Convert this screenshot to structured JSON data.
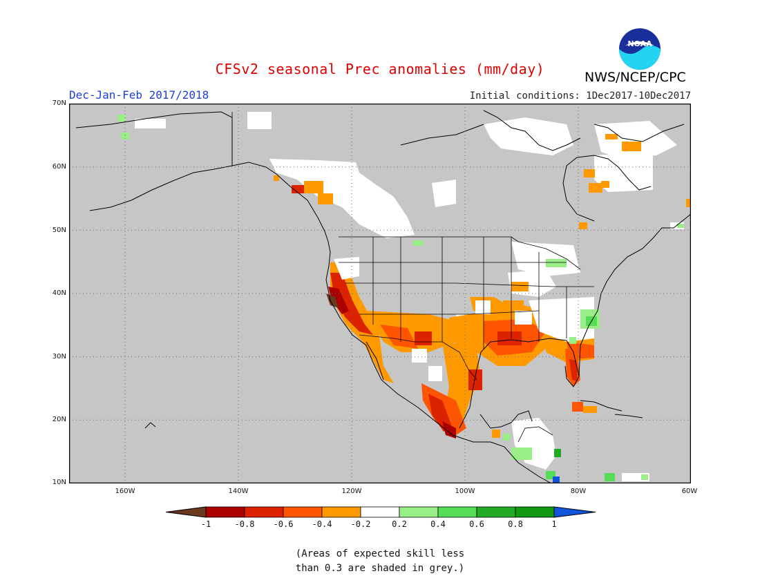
{
  "header": {
    "title": "CFSv2 seasonal Prec anomalies (mm/day)",
    "season": "Dec-Jan-Feb 2017/2018",
    "initial_conditions": "Initial conditions: 1Dec2017-10Dec2017",
    "agency": "NWS/NCEP/CPC",
    "logo_text": "NOAA"
  },
  "map": {
    "projection": "lat-lon",
    "lon_range": [
      -172,
      -60
    ],
    "lat_range": [
      10,
      70
    ],
    "grid": "dotted",
    "lat_labels": [
      "70N",
      "60N",
      "50N",
      "40N",
      "30N",
      "20N",
      "10N"
    ],
    "lon_labels": [
      "160W",
      "140W",
      "120W",
      "100W",
      "80W",
      "60W"
    ],
    "land_background": "#c6c6c6",
    "outline_color": "#000000"
  },
  "colorbar": {
    "tick_labels": [
      "-1",
      "-0.8",
      "-0.6",
      "-0.4",
      "-0.2",
      "0.2",
      "0.4",
      "0.6",
      "0.8",
      "1"
    ],
    "colors": [
      "#6b3a1e",
      "#aa0000",
      "#dd2200",
      "#ff5500",
      "#ff9900",
      "#ffffff",
      "#99ee88",
      "#55dd55",
      "#22aa22",
      "#119911",
      "#1155dd"
    ]
  },
  "footnote": {
    "line1": "(Areas of expected skill less",
    "line2": "than 0.3 are shaded in grey.)"
  }
}
